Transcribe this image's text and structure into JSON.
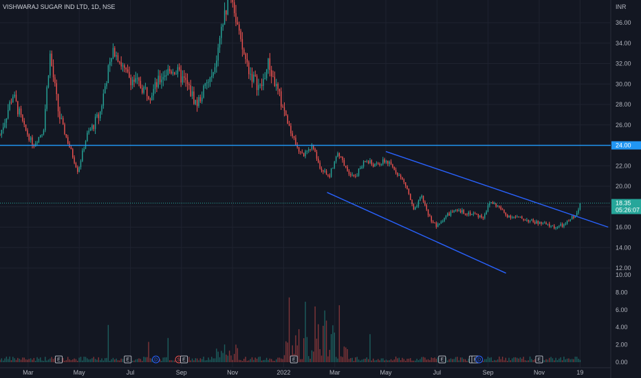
{
  "chart_data": {
    "type": "candlestick",
    "title": "VISHWARAJ SUGAR IND LTD, 1D, NSE",
    "currency": "INR",
    "y_ticks": [
      "36.00",
      "34.00",
      "32.00",
      "30.00",
      "28.00",
      "26.00",
      "24.00",
      "22.00",
      "20.00",
      "18.00",
      "16.00",
      "14.00",
      "12.00"
    ],
    "ylim": [
      11,
      40
    ],
    "volume_ticks": [
      "10.00",
      "8.00",
      "6.00",
      "4.00",
      "2.00",
      "0.00"
    ],
    "volume_lim": [
      0,
      10
    ],
    "x_ticks": [
      {
        "label": "Mar",
        "t": 4.0
      },
      {
        "label": "May",
        "t": 6.0
      },
      {
        "label": "Jul",
        "t": 8.0
      },
      {
        "label": "Sep",
        "t": 10.0
      },
      {
        "label": "Nov",
        "t": 12.0
      },
      {
        "label": "2022",
        "t": 14.0
      },
      {
        "label": "Mar",
        "t": 16.0
      },
      {
        "label": "May",
        "t": 18.0
      },
      {
        "label": "Jul",
        "t": 20.0
      },
      {
        "label": "Sep",
        "t": 22.0
      },
      {
        "label": "Nov",
        "t": 24.0
      },
      {
        "label": "19",
        "t": 25.6
      }
    ],
    "x_range": [
      2.9,
      26.8
    ],
    "price_path": [
      {
        "t": 2.9,
        "p": 25
      },
      {
        "t": 3.4,
        "p": 29
      },
      {
        "t": 3.8,
        "p": 26
      },
      {
        "t": 4.2,
        "p": 24
      },
      {
        "t": 4.6,
        "p": 25.5
      },
      {
        "t": 4.85,
        "p": 33
      },
      {
        "t": 5.2,
        "p": 27
      },
      {
        "t": 5.6,
        "p": 24
      },
      {
        "t": 5.95,
        "p": 21.5
      },
      {
        "t": 6.3,
        "p": 25
      },
      {
        "t": 6.8,
        "p": 27
      },
      {
        "t": 7.1,
        "p": 31
      },
      {
        "t": 7.4,
        "p": 33.5
      },
      {
        "t": 7.8,
        "p": 31
      },
      {
        "t": 8.3,
        "p": 30
      },
      {
        "t": 8.8,
        "p": 29
      },
      {
        "t": 9.3,
        "p": 31
      },
      {
        "t": 9.7,
        "p": 31.5
      },
      {
        "t": 10.2,
        "p": 30
      },
      {
        "t": 10.6,
        "p": 28
      },
      {
        "t": 11.0,
        "p": 30
      },
      {
        "t": 11.3,
        "p": 31
      },
      {
        "t": 11.7,
        "p": 37
      },
      {
        "t": 11.95,
        "p": 39
      },
      {
        "t": 12.3,
        "p": 34
      },
      {
        "t": 12.7,
        "p": 31
      },
      {
        "t": 13.1,
        "p": 29.5
      },
      {
        "t": 13.4,
        "p": 32
      },
      {
        "t": 13.8,
        "p": 29
      },
      {
        "t": 14.2,
        "p": 26
      },
      {
        "t": 14.5,
        "p": 24
      },
      {
        "t": 14.8,
        "p": 23
      },
      {
        "t": 15.1,
        "p": 24
      },
      {
        "t": 15.4,
        "p": 22
      },
      {
        "t": 15.8,
        "p": 21
      },
      {
        "t": 16.1,
        "p": 23.5
      },
      {
        "t": 16.5,
        "p": 21.5
      },
      {
        "t": 16.8,
        "p": 21
      },
      {
        "t": 17.2,
        "p": 22.5
      },
      {
        "t": 17.6,
        "p": 22
      },
      {
        "t": 18.0,
        "p": 22.5
      },
      {
        "t": 18.4,
        "p": 21.5
      },
      {
        "t": 18.8,
        "p": 20
      },
      {
        "t": 19.1,
        "p": 17.5
      },
      {
        "t": 19.4,
        "p": 19
      },
      {
        "t": 19.7,
        "p": 17
      },
      {
        "t": 20.0,
        "p": 16
      },
      {
        "t": 20.3,
        "p": 17
      },
      {
        "t": 20.6,
        "p": 17.5
      },
      {
        "t": 21.0,
        "p": 17.5
      },
      {
        "t": 21.4,
        "p": 17.3
      },
      {
        "t": 21.8,
        "p": 17
      },
      {
        "t": 22.1,
        "p": 18.5
      },
      {
        "t": 22.4,
        "p": 18
      },
      {
        "t": 22.7,
        "p": 17.2
      },
      {
        "t": 23.0,
        "p": 17
      },
      {
        "t": 23.4,
        "p": 16.8
      },
      {
        "t": 23.8,
        "p": 16.5
      },
      {
        "t": 24.2,
        "p": 16.3
      },
      {
        "t": 24.6,
        "p": 16
      },
      {
        "t": 25.0,
        "p": 16.2
      },
      {
        "t": 25.3,
        "p": 17
      },
      {
        "t": 25.5,
        "p": 17.3
      },
      {
        "t": 25.6,
        "p": 18.35
      }
    ],
    "horizontal_level": {
      "price": 24.0,
      "label": "24.00",
      "color": "#2196f3"
    },
    "current_price": {
      "price": 18.35,
      "label": "18.35",
      "countdown": "05:26:07",
      "color": "#26a69a"
    },
    "channel_lines": [
      {
        "from": {
          "t": 18.0,
          "p": 23.4
        },
        "to": {
          "t": 26.7,
          "p": 16.0
        },
        "color": "#2962ff"
      },
      {
        "from": {
          "t": 15.7,
          "p": 19.4
        },
        "to": {
          "t": 22.7,
          "p": 11.5
        },
        "color": "#2962ff"
      }
    ],
    "events": [
      {
        "t": 5.2,
        "kind": "E"
      },
      {
        "t": 7.9,
        "kind": "E"
      },
      {
        "t": 9.0,
        "kind": "D"
      },
      {
        "t": 9.9,
        "kind": "S"
      },
      {
        "t": 10.1,
        "kind": "E"
      },
      {
        "t": 14.4,
        "kind": "E"
      },
      {
        "t": 20.2,
        "kind": "E"
      },
      {
        "t": 21.4,
        "kind": "E"
      },
      {
        "t": 21.5,
        "kind": "E"
      },
      {
        "t": 21.65,
        "kind": "D"
      },
      {
        "t": 24.0,
        "kind": "E"
      }
    ],
    "colors": {
      "up": "#26a69a",
      "down": "#ef5350",
      "grid": "#1f2330",
      "background": "#131722",
      "text": "#b2b5be"
    }
  }
}
